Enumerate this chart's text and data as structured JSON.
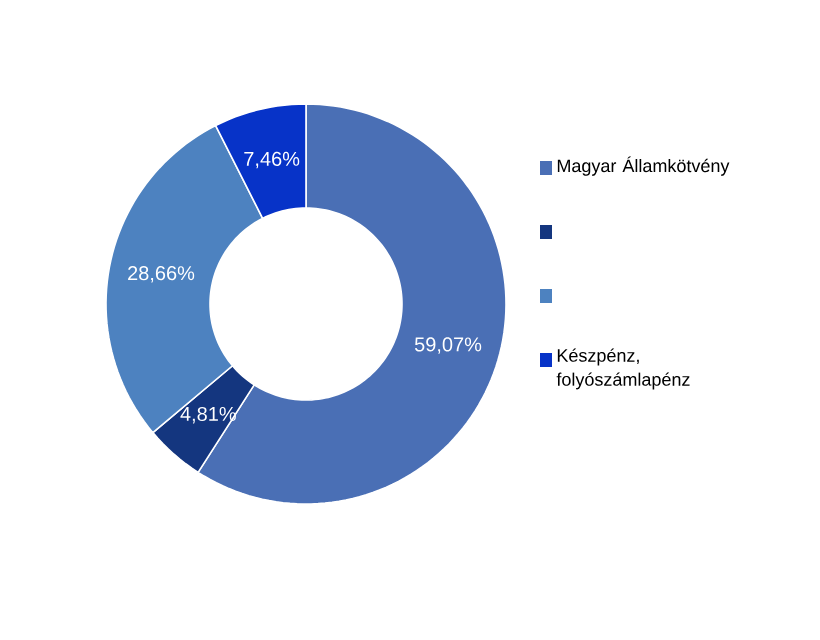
{
  "chart_data": {
    "type": "donut",
    "categories": [
      "Magyar Államkötvény",
      null,
      null,
      "Készpénz, folyószámlapénz"
    ],
    "values": [
      59.07,
      4.81,
      28.66,
      7.46
    ],
    "value_labels": [
      "59,07%",
      "4,81%",
      "28,66%",
      "7,46%"
    ],
    "colors": [
      "#4a6fb5",
      "#14367f",
      "#4d82c0",
      "#0733c8"
    ],
    "legend": "right"
  }
}
